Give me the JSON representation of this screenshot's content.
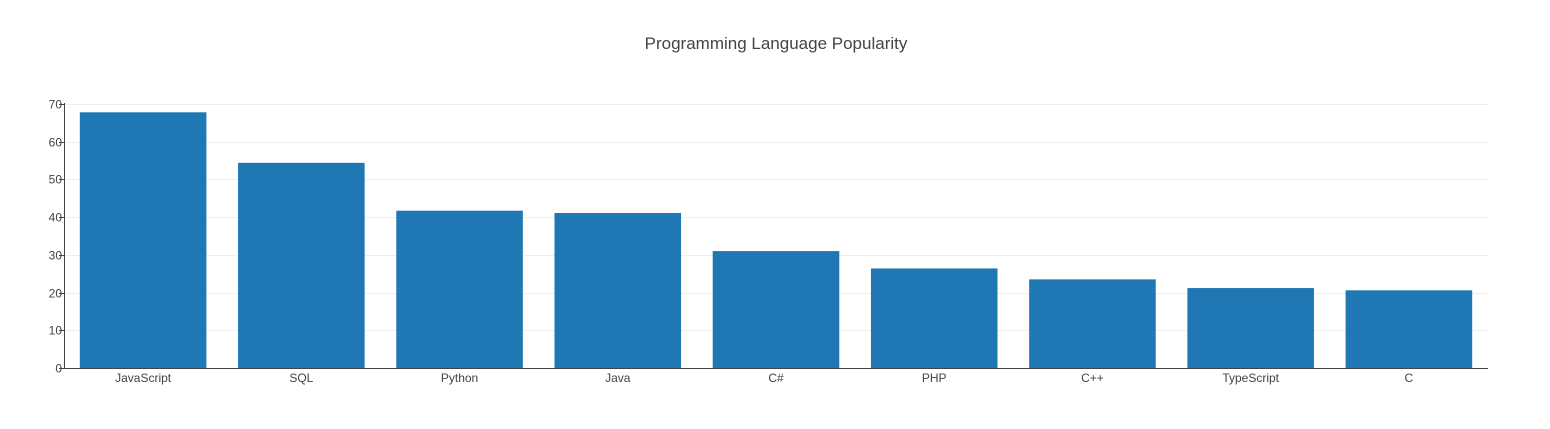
{
  "chart_data": {
    "type": "bar",
    "title": "Programming Language Popularity",
    "xlabel": "",
    "ylabel": "",
    "categories": [
      "JavaScript",
      "SQL",
      "Python",
      "Java",
      "C#",
      "PHP",
      "C++",
      "TypeScript",
      "C"
    ],
    "values": [
      67.8,
      54.4,
      41.7,
      41.1,
      31.0,
      26.4,
      23.5,
      21.2,
      20.6
    ],
    "ylim": [
      0,
      70
    ],
    "yticks": [
      0,
      10,
      20,
      30,
      40,
      50,
      60,
      70
    ],
    "grid": true,
    "legend": "none",
    "bar_color": "#1f77b4"
  }
}
